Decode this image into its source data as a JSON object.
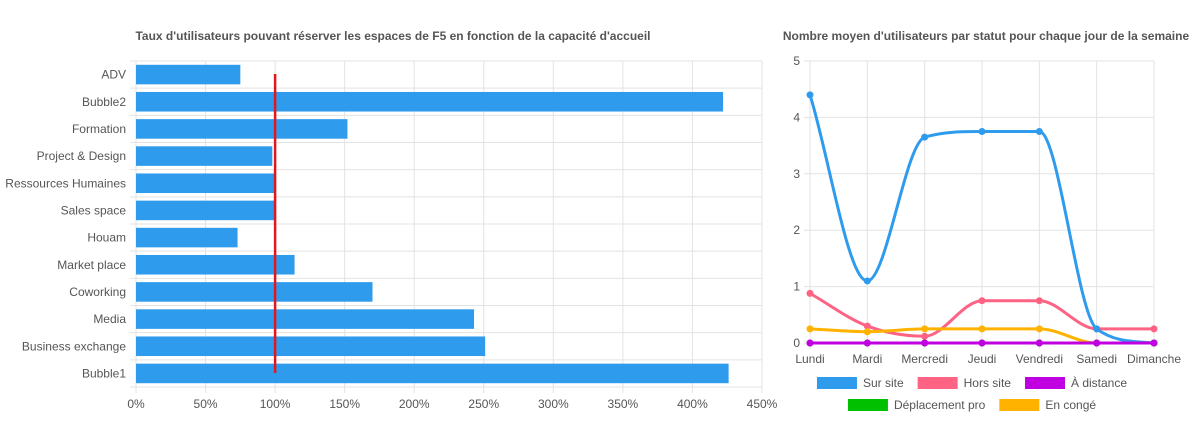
{
  "chart_data": [
    {
      "type": "bar",
      "orientation": "horizontal",
      "title": "Taux d'utilisateurs pouvant réserver les espaces de F5 en fonction de la capacité d'accueil",
      "categories": [
        "ADV",
        "Bubble2",
        "Formation",
        "Project & Design",
        "Ressources Humaines",
        "Sales space",
        "Houam",
        "Market place",
        "Coworking",
        "Media",
        "Business exchange",
        "Bubble1"
      ],
      "values": [
        75,
        422,
        152,
        98,
        100,
        100,
        73,
        114,
        170,
        243,
        251,
        426
      ],
      "xlim": [
        0,
        450
      ],
      "x_ticks": [
        "0%",
        "50%",
        "100%",
        "150%",
        "200%",
        "250%",
        "300%",
        "350%",
        "400%",
        "450%"
      ],
      "reference_line": 100,
      "bar_color": "#2f9bec",
      "reference_color": "#e0171f",
      "grid": true
    },
    {
      "type": "line",
      "title": "Nombre moyen d'utilisateurs par statut pour chaque jour de la semaine",
      "categories": [
        "Lundi",
        "Mardi",
        "Mercredi",
        "Jeudi",
        "Vendredi",
        "Samedi",
        "Dimanche"
      ],
      "ylim": [
        0,
        5
      ],
      "y_ticks": [
        "0",
        "1",
        "2",
        "3",
        "4",
        "5"
      ],
      "series": [
        {
          "name": "Sur site",
          "color": "#2f9bec",
          "values": [
            4.4,
            1.1,
            3.65,
            3.75,
            3.75,
            0.25,
            0
          ]
        },
        {
          "name": "Hors site",
          "color": "#ff6384",
          "values": [
            0.88,
            0.3,
            0.12,
            0.75,
            0.75,
            0.25,
            0.25
          ]
        },
        {
          "name": "À distance",
          "color": "#c000e0",
          "values": [
            0,
            0,
            0,
            0,
            0,
            0,
            0
          ]
        },
        {
          "name": "Déplacement pro",
          "color": "#00c000",
          "values": [
            0,
            0,
            0,
            0,
            0,
            0,
            0
          ]
        },
        {
          "name": "En congé",
          "color": "#ffb300",
          "values": [
            0.25,
            0.2,
            0.25,
            0.25,
            0.25,
            0,
            0
          ]
        }
      ],
      "legend_position": "bottom",
      "grid": true
    }
  ]
}
